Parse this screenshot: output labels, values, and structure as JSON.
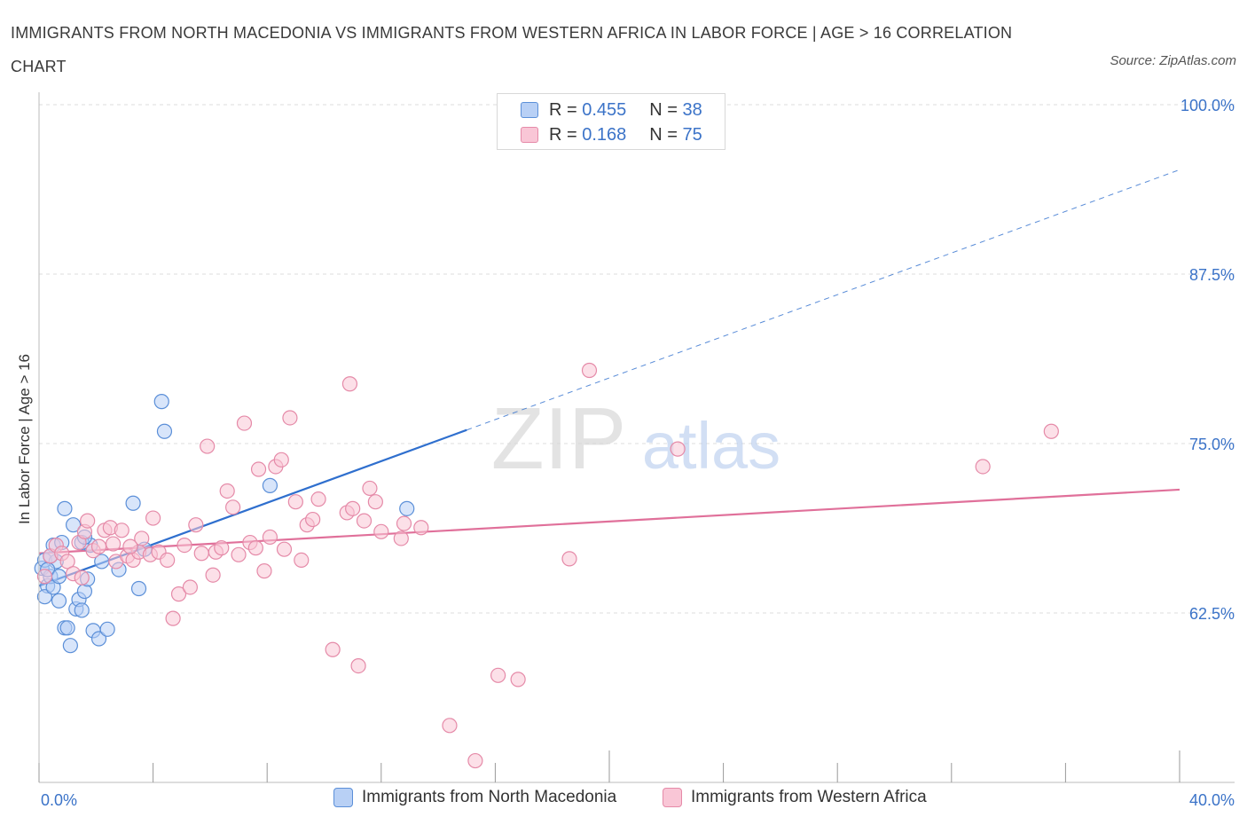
{
  "title": "IMMIGRANTS FROM NORTH MACEDONIA VS IMMIGRANTS FROM WESTERN AFRICA IN LABOR FORCE | AGE > 16 CORRELATION CHART",
  "source": "Source: ZipAtlas.com",
  "colors": {
    "blue": "#5b8fd8",
    "blue_fill": "#b8d0f5",
    "blue_line": "#2f6fce",
    "pink": "#e58aa8",
    "pink_fill": "#f9c6d6",
    "pink_line": "#e0709a",
    "tick_text": "#3b73c8",
    "grid": "#dcdcdc"
  },
  "legend": {
    "rows": [
      {
        "r_label": "R =",
        "r_value": "0.455",
        "n_label": "N =",
        "n_value": "38"
      },
      {
        "r_label": "R =",
        "r_value": "0.168",
        "n_label": "N =",
        "n_value": "75"
      }
    ]
  },
  "bottom_legend": [
    "Immigrants from North Macedonia",
    "Immigrants from Western Africa"
  ],
  "watermark": {
    "zip": "ZIP",
    "atlas": "atlas"
  },
  "chart_data": {
    "type": "scatter",
    "title": "IMMIGRANTS FROM NORTH MACEDONIA VS IMMIGRANTS FROM WESTERN AFRICA IN LABOR FORCE | AGE > 16 CORRELATION CHART",
    "xlabel": "",
    "ylabel": "In Labor Force | Age > 16",
    "xlim": [
      0,
      40
    ],
    "ylim": [
      50,
      100
    ],
    "x_tick_labels": [
      "0.0%",
      "40.0%"
    ],
    "y_ticks": [
      62.5,
      75.0,
      87.5,
      100.0
    ],
    "y_tick_labels": [
      "62.5%",
      "75.0%",
      "87.5%",
      "100.0%"
    ],
    "grid": true,
    "legend_position": "top-center",
    "series": [
      {
        "name": "Immigrants from North Macedonia",
        "R": 0.455,
        "N": 38,
        "trend": {
          "x0": 0.0,
          "y0": 64.5,
          "x1": 15.0,
          "y1": 76.0,
          "dashed_to_x": 40.0,
          "dashed_to_y": 95.2
        },
        "points": [
          [
            0.1,
            65.8
          ],
          [
            0.2,
            66.4
          ],
          [
            0.3,
            64.5
          ],
          [
            0.4,
            65.2
          ],
          [
            0.2,
            63.7
          ],
          [
            0.5,
            64.4
          ],
          [
            0.6,
            66.3
          ],
          [
            0.3,
            65.7
          ],
          [
            0.5,
            67.5
          ],
          [
            0.7,
            65.2
          ],
          [
            0.8,
            67.7
          ],
          [
            0.9,
            61.4
          ],
          [
            1.0,
            61.4
          ],
          [
            1.1,
            60.1
          ],
          [
            1.2,
            69.0
          ],
          [
            1.3,
            62.8
          ],
          [
            1.4,
            63.5
          ],
          [
            1.5,
            62.7
          ],
          [
            1.6,
            64.1
          ],
          [
            1.7,
            65.0
          ],
          [
            1.8,
            67.5
          ],
          [
            1.9,
            61.2
          ],
          [
            2.1,
            60.6
          ],
          [
            2.2,
            66.3
          ],
          [
            2.4,
            61.3
          ],
          [
            2.8,
            65.7
          ],
          [
            3.3,
            70.6
          ],
          [
            3.5,
            64.3
          ],
          [
            4.3,
            78.1
          ],
          [
            4.4,
            75.9
          ],
          [
            3.7,
            67.2
          ],
          [
            8.1,
            71.9
          ],
          [
            12.9,
            70.2
          ],
          [
            1.5,
            67.7
          ],
          [
            0.7,
            63.4
          ],
          [
            1.6,
            68.1
          ],
          [
            0.9,
            70.2
          ],
          [
            0.4,
            66.7
          ]
        ]
      },
      {
        "name": "Immigrants from Western Africa",
        "R": 0.168,
        "N": 75,
        "trend": {
          "x0": 0.0,
          "y0": 66.9,
          "x1": 40.0,
          "y1": 71.6
        },
        "points": [
          [
            0.2,
            65.2
          ],
          [
            0.4,
            66.7
          ],
          [
            0.6,
            67.5
          ],
          [
            0.8,
            66.9
          ],
          [
            1.0,
            66.3
          ],
          [
            1.2,
            65.4
          ],
          [
            1.4,
            67.7
          ],
          [
            1.6,
            68.5
          ],
          [
            1.7,
            69.3
          ],
          [
            1.9,
            67.1
          ],
          [
            2.1,
            67.4
          ],
          [
            2.3,
            68.6
          ],
          [
            2.5,
            68.8
          ],
          [
            2.7,
            66.3
          ],
          [
            2.9,
            68.6
          ],
          [
            3.1,
            66.7
          ],
          [
            3.3,
            66.4
          ],
          [
            3.5,
            67.0
          ],
          [
            3.6,
            68.0
          ],
          [
            3.9,
            66.8
          ],
          [
            4.0,
            69.5
          ],
          [
            4.2,
            67.0
          ],
          [
            4.5,
            66.4
          ],
          [
            4.7,
            62.1
          ],
          [
            4.9,
            63.9
          ],
          [
            5.1,
            67.5
          ],
          [
            5.3,
            64.4
          ],
          [
            5.5,
            69.0
          ],
          [
            5.7,
            66.9
          ],
          [
            5.9,
            74.8
          ],
          [
            6.1,
            65.3
          ],
          [
            6.2,
            67.0
          ],
          [
            6.4,
            67.3
          ],
          [
            6.6,
            71.5
          ],
          [
            6.8,
            70.3
          ],
          [
            7.0,
            66.8
          ],
          [
            7.2,
            76.5
          ],
          [
            7.4,
            67.7
          ],
          [
            7.6,
            67.3
          ],
          [
            7.7,
            73.1
          ],
          [
            7.9,
            65.6
          ],
          [
            8.1,
            68.1
          ],
          [
            8.3,
            73.3
          ],
          [
            8.5,
            73.8
          ],
          [
            8.6,
            67.2
          ],
          [
            8.8,
            76.9
          ],
          [
            9.0,
            70.7
          ],
          [
            9.2,
            66.4
          ],
          [
            9.4,
            69.0
          ],
          [
            9.6,
            69.4
          ],
          [
            9.8,
            70.9
          ],
          [
            10.3,
            59.8
          ],
          [
            10.8,
            69.9
          ],
          [
            10.9,
            79.4
          ],
          [
            11.0,
            70.2
          ],
          [
            11.2,
            58.6
          ],
          [
            11.4,
            69.3
          ],
          [
            11.6,
            71.7
          ],
          [
            11.8,
            70.7
          ],
          [
            12.0,
            68.5
          ],
          [
            12.7,
            68.0
          ],
          [
            12.8,
            69.1
          ],
          [
            13.4,
            68.8
          ],
          [
            14.4,
            54.2
          ],
          [
            15.3,
            51.6
          ],
          [
            16.1,
            57.9
          ],
          [
            16.8,
            57.6
          ],
          [
            18.6,
            66.5
          ],
          [
            19.3,
            80.4
          ],
          [
            22.4,
            74.6
          ],
          [
            33.1,
            73.3
          ],
          [
            35.5,
            75.9
          ],
          [
            1.5,
            65.1
          ],
          [
            3.2,
            67.4
          ],
          [
            2.6,
            67.6
          ]
        ]
      }
    ]
  }
}
